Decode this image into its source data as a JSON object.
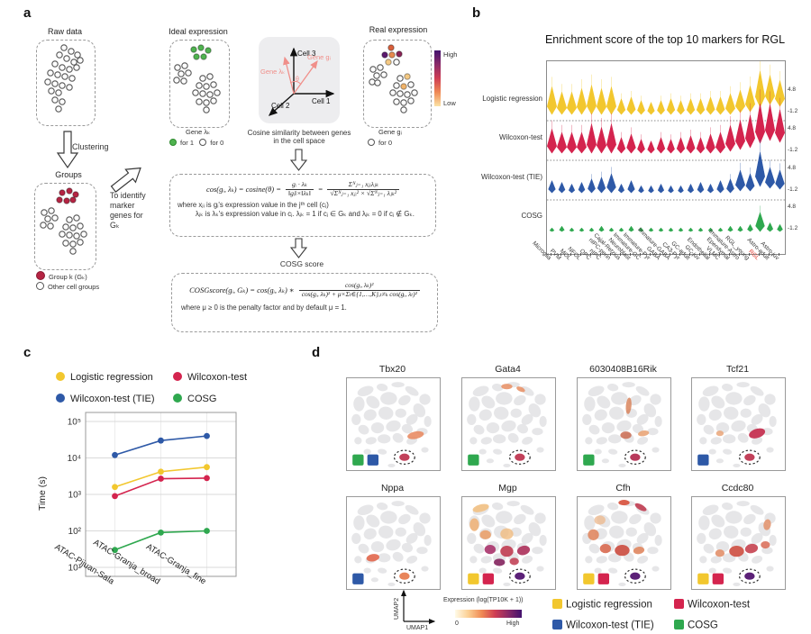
{
  "figure": {
    "labels": {
      "a": "a",
      "b": "b",
      "c": "c",
      "d": "d"
    }
  },
  "methods": [
    {
      "id": "lr",
      "label": "Logistic regression",
      "color": "#F2C72E"
    },
    {
      "id": "wt",
      "label": "Wilcoxon-test",
      "color": "#D4244E"
    },
    {
      "id": "tie",
      "label": "Wilcoxon-test (TIE)",
      "color": "#2E59A7"
    },
    {
      "id": "cosg",
      "label": "COSG",
      "color": "#2FA84F"
    }
  ],
  "colors": {
    "rgl_highlight": "#E03226",
    "group_red": "#B52443",
    "ideal_green": "#4FB34F",
    "pink_vector": "#F08F8A",
    "umap_gray": "#E6E6E8",
    "expression_low": "#FFF8E5",
    "expression_high": "#43126E"
  },
  "panel_a": {
    "raw_data_title": "Raw data",
    "clustering_label": "Clustering",
    "groups_title": "Groups",
    "groups_legend_group": "Group k (Gₖ)",
    "groups_legend_other": "Other cell groups",
    "identify_label": "To identify\nmarker\ngenes for\nGₖ",
    "ideal_title": "Ideal expression",
    "ideal_gene": "Gene λₖ",
    "ideal_legend_1": "for 1",
    "ideal_legend_0": "for 0",
    "cell_axes": {
      "c1": "Cell 1",
      "c2": "Cell 2",
      "c3": "Cell 3",
      "gene_l": "Gene λₖ",
      "gene_g": "Gene gᵢ",
      "theta": "θ"
    },
    "cosine_caption": "Cosine similarity between genes\nin the cell space",
    "real_title": "Real expression",
    "real_gene": "Gene gᵢ",
    "real_legend_0": "for 0",
    "colorbar_high": "High",
    "colorbar_low": "Low",
    "formula1": {
      "lhs": "cos(gᵢ, λₖ) = cosine(θ) =",
      "f1num": "gᵢ · λₖ",
      "f1den": "‖gᵢ‖×‖λₖ‖",
      "eq": "=",
      "f2num": "Σᴺⱼ₌₁ xⱼᵢλⱼₖ",
      "f2den": "√Σᴺⱼ₌₁ xⱼᵢ² × √Σᴺⱼ₌₁ λⱼₖ²",
      "where1": "where xⱼᵢ is gᵢ's expression value in the jᵗʰ cell (cⱼ)",
      "where2": "λⱼₖ is λₖ's expression value in cⱼ.  λⱼₖ = 1 if cⱼ ∈ Gₖ and λⱼₖ = 0 if cⱼ ∉ Gₖ."
    },
    "cosg_score_label": "COSG score",
    "formula2": {
      "lhs": "COSGscore(gᵢ, Gₖ) = cos(gᵢ, λₖ) ∗",
      "num": "cos(gᵢ, λₖ)²",
      "den": "cos(gᵢ, λₖ)² + μ×Σₜ∈{1,…,K},ₜ≠ₖ cos(gᵢ, λₜ)²",
      "where": "where μ ≥ 0 is the penalty factor and by default μ = 1."
    }
  },
  "panel_b": {
    "title": "Enrichment score of the top 10 markers for RGL",
    "axis_top": "4.8",
    "axis_bottom": "-1.2",
    "highlight_category": "RGL",
    "categories": [
      "Microglia",
      "PVM",
      "MOL",
      "NFOL",
      "OPC",
      "nIPC",
      "nIPC-perin",
      "Cajal-Retzius",
      "Neuroblast",
      "Immature-GC",
      "Immature-Pyr",
      "GABA",
      "Immature-GABA",
      "CA3-Pyr",
      "GC-adult",
      "GC-juv",
      "Endothelial",
      "VLMC",
      "Ependymal",
      "Immature-Astro",
      "RGL_young",
      "RGL",
      "Astro-adult",
      "Astro-juv"
    ],
    "rows": [
      {
        "method": "lr",
        "label": "Logistic regression",
        "heights": [
          16,
          13,
          13,
          15,
          17,
          15,
          16,
          9,
          10,
          8,
          7,
          8,
          9,
          8,
          9,
          9,
          10,
          10,
          12,
          13,
          15,
          21,
          17,
          15
        ],
        "lifts": [
          0,
          0,
          0,
          0,
          0,
          0,
          0,
          0,
          0,
          0,
          0,
          0,
          0,
          0,
          0,
          0,
          0,
          0,
          0,
          2,
          3,
          8,
          11,
          9
        ]
      },
      {
        "method": "wt",
        "label": "Wilcoxon-test",
        "heights": [
          14,
          12,
          12,
          12,
          17,
          15,
          17,
          9,
          11,
          8,
          7,
          9,
          8,
          9,
          10,
          9,
          11,
          12,
          15,
          17,
          19,
          23,
          21,
          19
        ],
        "lifts": [
          0,
          0,
          0,
          0,
          0,
          0,
          0,
          0,
          0,
          0,
          0,
          0,
          0,
          0,
          0,
          0,
          0,
          0,
          2,
          4,
          6,
          11,
          14,
          12
        ]
      },
      {
        "method": "tie",
        "label": "Wilcoxon-test (TIE)",
        "heights": [
          7,
          6,
          5,
          6,
          8,
          9,
          11,
          5,
          7,
          4,
          4,
          5,
          4,
          4,
          5,
          6,
          5,
          7,
          8,
          12,
          10,
          20,
          12,
          11
        ],
        "lifts": [
          0,
          0,
          0,
          0,
          0,
          0,
          0,
          0,
          0,
          0,
          0,
          0,
          0,
          0,
          0,
          0,
          0,
          0,
          0,
          2,
          2,
          7,
          5,
          4
        ]
      },
      {
        "method": "cosg",
        "label": "COSG",
        "heights": [
          2,
          3,
          2,
          2,
          2,
          3,
          2,
          2,
          3,
          2,
          2,
          2,
          2,
          2,
          2,
          2,
          2,
          2,
          3,
          3,
          4,
          11,
          5,
          4
        ],
        "lifts": [
          0,
          0,
          0,
          0,
          0,
          0,
          0,
          0,
          0,
          0,
          0,
          0,
          0,
          0,
          0,
          0,
          0,
          0,
          0,
          0,
          0,
          0,
          0,
          0
        ]
      }
    ]
  },
  "panel_c": {
    "ylabel": "Time (s)",
    "ytick_labels": [
      "10⁵",
      "10⁴",
      "10³",
      "10²",
      "10¹"
    ],
    "categories": [
      "ATAC-Pijuan-Sala",
      "ATAC-Granja_broad",
      "ATAC-Granja_fine"
    ],
    "series": [
      {
        "method": "lr",
        "values": [
          1600,
          4200,
          5600
        ]
      },
      {
        "method": "wt",
        "values": [
          900,
          2700,
          2800
        ]
      },
      {
        "method": "tie",
        "values": [
          12000,
          30000,
          40000
        ]
      },
      {
        "method": "cosg",
        "values": [
          30,
          90,
          100
        ]
      }
    ]
  },
  "panel_d": {
    "axis": {
      "x": "UMAP1",
      "y": "UMAP2"
    },
    "colorbar_label": "Expression (log(TP10K + 1))",
    "colorbar_min": "0",
    "colorbar_max": "High",
    "panels": [
      {
        "title": "Tbx20",
        "methods": [
          "cosg",
          "tie"
        ],
        "circle_color": "#C2415A",
        "overlays": [
          [
            74,
            62,
            9,
            4,
            -12,
            "#E8855A",
            0.85
          ]
        ]
      },
      {
        "title": "Gata4",
        "methods": [
          "cosg"
        ],
        "circle_color": "#C2415A",
        "overlays": [
          [
            48,
            9,
            6,
            3,
            0,
            "#E8946A",
            0.9
          ],
          [
            63,
            12,
            5,
            2.5,
            25,
            "#E8946A",
            0.9
          ]
        ]
      },
      {
        "title": "6030408B16Rik",
        "methods": [
          "cosg"
        ],
        "circle_color": "#B83A5C",
        "overlays": [
          [
            55,
            30,
            3,
            9,
            5,
            "#D77D52",
            0.8
          ],
          [
            52,
            62,
            6,
            4,
            0,
            "#C96A50",
            0.85
          ],
          [
            71,
            60,
            6,
            3,
            -10,
            "#E8A070",
            0.85
          ]
        ]
      },
      {
        "title": "Tcf21",
        "methods": [
          "tie"
        ],
        "circle_color": "#C2415A",
        "overlays": [
          [
            70,
            60,
            9,
            5,
            -18,
            "#C53352",
            0.95
          ],
          [
            30,
            60,
            4,
            3,
            0,
            "#E8A070",
            0.8
          ]
        ]
      },
      {
        "title": "Nppa",
        "methods": [
          "tie"
        ],
        "circle_color": "#E8855A",
        "overlays": [
          [
            28,
            66,
            7,
            4,
            -10,
            "#E2674D",
            0.9
          ]
        ]
      },
      {
        "title": "Mgp",
        "methods": [
          "lr",
          "wt"
        ],
        "circle_color": "#5C2178",
        "overlays": [
          [
            20,
            12,
            9,
            4,
            -15,
            "#F2C184",
            0.9
          ],
          [
            13,
            30,
            5,
            7,
            0,
            "#EEB27A",
            0.9
          ],
          [
            25,
            41,
            6,
            5,
            0,
            "#E9A06C",
            0.9
          ],
          [
            48,
            40,
            7,
            6,
            0,
            "#F0BC80",
            0.8
          ],
          [
            30,
            57,
            6,
            5,
            0,
            "#A8336B",
            0.9
          ],
          [
            48,
            59,
            7,
            6,
            0,
            "#C24458",
            0.95
          ],
          [
            66,
            58,
            7,
            5,
            -15,
            "#B03A62",
            0.95
          ],
          [
            40,
            71,
            6,
            4,
            0,
            "#8A2E66",
            0.95
          ],
          [
            56,
            70,
            5,
            4,
            0,
            "#C24458",
            0.9
          ]
        ]
      },
      {
        "title": "Cfh",
        "methods": [
          "lr",
          "wt"
        ],
        "circle_color": "#5C2178",
        "overlays": [
          [
            50,
            6,
            6,
            3,
            0,
            "#D95844",
            0.95
          ],
          [
            68,
            11,
            7,
            3,
            30,
            "#C24458",
            0.95
          ],
          [
            17,
            41,
            6,
            6,
            0,
            "#E08760",
            0.9
          ],
          [
            30,
            56,
            6,
            5,
            0,
            "#D96A50",
            0.9
          ],
          [
            48,
            58,
            8,
            6,
            0,
            "#CC5348",
            0.95
          ],
          [
            66,
            58,
            6,
            4,
            -10,
            "#E08760",
            0.9
          ],
          [
            24,
            25,
            6,
            5,
            0,
            "#EDB384",
            0.7
          ]
        ]
      },
      {
        "title": "Ccdc80",
        "methods": [
          "lr",
          "wt"
        ],
        "circle_color": "#5C2178",
        "overlays": [
          [
            81,
            30,
            4,
            6,
            10,
            "#E2906A",
            0.85
          ],
          [
            48,
            59,
            8,
            6,
            0,
            "#D0564A",
            0.95
          ],
          [
            64,
            56,
            7,
            5,
            -12,
            "#C94C58",
            0.95
          ],
          [
            30,
            61,
            5,
            4,
            0,
            "#E2906A",
            0.9
          ],
          [
            79,
            52,
            5,
            4,
            0,
            "#D86A55",
            0.85
          ]
        ]
      }
    ]
  },
  "chart_data": [
    {
      "id": "panel_b",
      "type": "violin",
      "title": "Enrichment score of the top 10 markers for RGL",
      "categories": [
        "Microglia",
        "PVM",
        "MOL",
        "NFOL",
        "OPC",
        "nIPC",
        "nIPC-perin",
        "Cajal-Retzius",
        "Neuroblast",
        "Immature-GC",
        "Immature-Pyr",
        "GABA",
        "Immature-GABA",
        "CA3-Pyr",
        "GC-adult",
        "GC-juv",
        "Endothelial",
        "VLMC",
        "Ependymal",
        "Immature-Astro",
        "RGL_young",
        "RGL",
        "Astro-adult",
        "Astro-juv"
      ],
      "rows": [
        "Logistic regression",
        "Wilcoxon-test",
        "Wilcoxon-test (TIE)",
        "COSG"
      ],
      "row_ylim": [
        -1.2,
        4.8
      ],
      "highlight_category": "RGL",
      "legend_position": "left-axis"
    },
    {
      "id": "panel_c",
      "type": "line",
      "yscale": "log",
      "ylabel": "Time (s)",
      "ylim": [
        10,
        100000
      ],
      "grid": true,
      "categories": [
        "ATAC-Pijuan-Sala",
        "ATAC-Granja_broad",
        "ATAC-Granja_fine"
      ],
      "series": [
        {
          "name": "Logistic regression",
          "values": [
            1600,
            4200,
            5600
          ]
        },
        {
          "name": "Wilcoxon-test",
          "values": [
            900,
            2700,
            2800
          ]
        },
        {
          "name": "Wilcoxon-test (TIE)",
          "values": [
            12000,
            30000,
            40000
          ]
        },
        {
          "name": "COSG",
          "values": [
            30,
            90,
            100
          ]
        }
      ],
      "legend_position": "top"
    }
  ]
}
